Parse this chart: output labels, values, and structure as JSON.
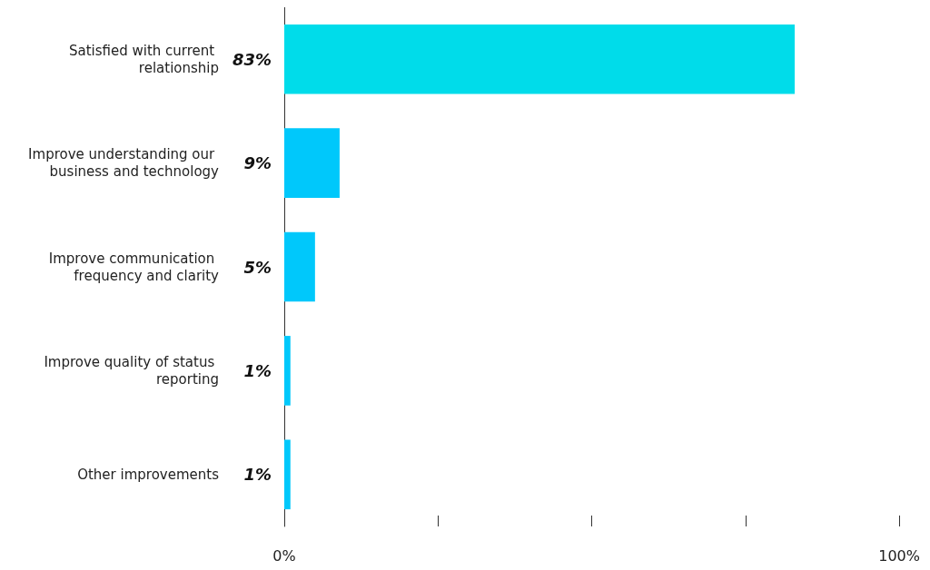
{
  "chart_data": {
    "type": "bar",
    "orientation": "horizontal",
    "categories": [
      "Satisfied with current relationship",
      "Improve understanding our business and technology",
      "Improve communication frequency and clarity",
      "Improve quality of status reporting",
      "Other improvements"
    ],
    "values": [
      83,
      9,
      5,
      1,
      1
    ],
    "colors": [
      "#00dcea",
      "#00c8fb",
      "#00c8fb",
      "#00c8fb",
      "#00c8fb"
    ],
    "value_labels": [
      "83%",
      "9%",
      "5%",
      "1%",
      "1%"
    ],
    "xlim": [
      0,
      100
    ],
    "xticks": [
      {
        "value": 0,
        "label": "0%"
      },
      {
        "value": 25,
        "label": null
      },
      {
        "value": 50,
        "label": null
      },
      {
        "value": 75,
        "label": null
      },
      {
        "value": 100,
        "label": "100%"
      }
    ],
    "grid": false
  }
}
